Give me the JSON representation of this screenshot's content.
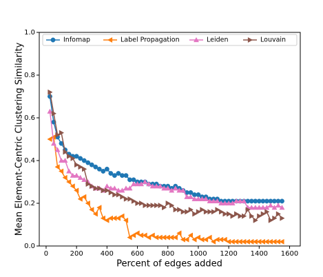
{
  "chart_data": {
    "type": "line",
    "xlabel": "Percent of edges added",
    "ylabel": "Mean Element-Centric Clustering Similarity",
    "x": [
      25,
      50,
      75,
      100,
      125,
      150,
      175,
      200,
      225,
      250,
      275,
      300,
      325,
      350,
      375,
      400,
      425,
      450,
      475,
      500,
      525,
      550,
      575,
      600,
      625,
      650,
      675,
      700,
      725,
      750,
      775,
      800,
      825,
      850,
      875,
      900,
      925,
      950,
      975,
      1000,
      1025,
      1050,
      1075,
      1100,
      1125,
      1150,
      1175,
      1200,
      1225,
      1250,
      1275,
      1300,
      1325,
      1350,
      1375,
      1400,
      1425,
      1450,
      1475,
      1500,
      1525,
      1550
    ],
    "series": [
      {
        "name": "Infomap",
        "color": "#1f77b4",
        "marker": "circle",
        "values": [
          0.7,
          0.58,
          0.51,
          0.48,
          0.45,
          0.43,
          0.42,
          0.42,
          0.41,
          0.4,
          0.39,
          0.38,
          0.37,
          0.36,
          0.35,
          0.36,
          0.34,
          0.33,
          0.34,
          0.33,
          0.33,
          0.31,
          0.31,
          0.3,
          0.3,
          0.3,
          0.29,
          0.29,
          0.29,
          0.28,
          0.28,
          0.28,
          0.27,
          0.28,
          0.27,
          0.26,
          0.25,
          0.25,
          0.24,
          0.24,
          0.23,
          0.23,
          0.22,
          0.22,
          0.22,
          0.21,
          0.21,
          0.21,
          0.21,
          0.21,
          0.21,
          0.21,
          0.21,
          0.21,
          0.21,
          0.21,
          0.21,
          0.21,
          0.21,
          0.21,
          0.21,
          0.21
        ]
      },
      {
        "name": "Label Propagation",
        "color": "#ff7f0e",
        "marker": "triangle-left",
        "values": [
          0.5,
          0.51,
          0.37,
          0.35,
          0.32,
          0.3,
          0.28,
          0.26,
          0.22,
          0.23,
          0.2,
          0.17,
          0.15,
          0.18,
          0.13,
          0.12,
          0.13,
          0.13,
          0.13,
          0.14,
          0.12,
          0.04,
          0.05,
          0.06,
          0.05,
          0.05,
          0.04,
          0.05,
          0.04,
          0.04,
          0.04,
          0.04,
          0.04,
          0.04,
          0.06,
          0.03,
          0.03,
          0.05,
          0.03,
          0.04,
          0.03,
          0.03,
          0.04,
          0.02,
          0.03,
          0.03,
          0.03,
          0.02,
          0.02,
          0.02,
          0.02,
          0.02,
          0.02,
          0.02,
          0.02,
          0.02,
          0.02,
          0.02,
          0.02,
          0.02,
          0.02,
          0.02
        ]
      },
      {
        "name": "Leiden",
        "color": "#e377c2",
        "marker": "triangle-up",
        "values": [
          0.63,
          0.48,
          0.45,
          0.4,
          0.4,
          0.35,
          0.33,
          0.33,
          0.32,
          0.31,
          0.3,
          0.28,
          0.27,
          0.27,
          0.26,
          0.28,
          0.27,
          0.27,
          0.26,
          0.26,
          0.27,
          0.27,
          0.29,
          0.29,
          0.29,
          0.3,
          0.29,
          0.28,
          0.28,
          0.28,
          0.27,
          0.27,
          0.26,
          0.27,
          0.26,
          0.26,
          0.23,
          0.23,
          0.22,
          0.22,
          0.22,
          0.22,
          0.21,
          0.21,
          0.21,
          0.2,
          0.2,
          0.2,
          0.2,
          0.21,
          0.21,
          0.21,
          0.18,
          0.18,
          0.18,
          0.18,
          0.18,
          0.18,
          0.19,
          0.18,
          0.19,
          0.18
        ]
      },
      {
        "name": "Louvain",
        "color": "#8c564b",
        "marker": "triangle-right",
        "values": [
          0.72,
          0.62,
          0.52,
          0.53,
          0.44,
          0.42,
          0.41,
          0.38,
          0.37,
          0.36,
          0.29,
          0.28,
          0.27,
          0.27,
          0.26,
          0.26,
          0.25,
          0.24,
          0.24,
          0.23,
          0.22,
          0.22,
          0.21,
          0.2,
          0.2,
          0.19,
          0.19,
          0.19,
          0.19,
          0.19,
          0.18,
          0.2,
          0.19,
          0.17,
          0.17,
          0.16,
          0.16,
          0.17,
          0.15,
          0.16,
          0.17,
          0.16,
          0.16,
          0.16,
          0.17,
          0.16,
          0.15,
          0.15,
          0.14,
          0.15,
          0.14,
          0.14,
          0.17,
          0.14,
          0.12,
          0.14,
          0.15,
          0.16,
          0.12,
          0.13,
          0.15,
          0.13
        ]
      }
    ],
    "xlim": [
      -45,
      1670
    ],
    "ylim": [
      0,
      1
    ],
    "xticks": [
      0,
      200,
      400,
      600,
      800,
      1000,
      1200,
      1400,
      1600
    ],
    "yticks": [
      {
        "value": 0,
        "label": "0.0"
      },
      0.2,
      0.4,
      0.6,
      0.8,
      {
        "value": 1,
        "label": "1.0"
      }
    ],
    "legend": "top"
  }
}
